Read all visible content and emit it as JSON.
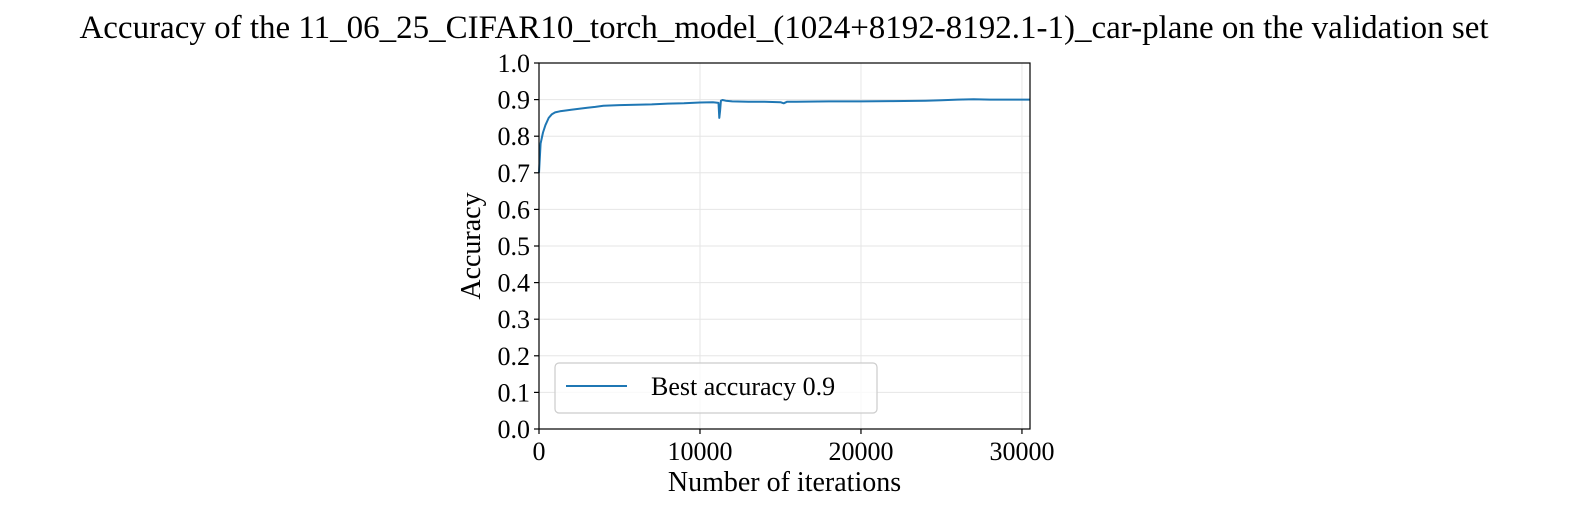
{
  "chart_data": {
    "type": "line",
    "title": "Accuracy of the 11_06_25_CIFAR10_torch_model_(1024+8192-8192.1-1)_car-plane on the validation set",
    "xlabel": "Number of iterations",
    "ylabel": "Accuracy",
    "xlim": [
      0,
      30500
    ],
    "ylim": [
      0.0,
      1.0
    ],
    "grid": true,
    "xticks": [
      0,
      10000,
      20000,
      30000
    ],
    "xtick_labels": [
      "0",
      "10000",
      "20000",
      "30000"
    ],
    "yticks": [
      0.0,
      0.1,
      0.2,
      0.3,
      0.4,
      0.5,
      0.6,
      0.7,
      0.8,
      0.9,
      1.0
    ],
    "ytick_labels": [
      "0.0",
      "0.1",
      "0.2",
      "0.3",
      "0.4",
      "0.5",
      "0.6",
      "0.7",
      "0.8",
      "0.9",
      "1.0"
    ],
    "legend_position": "lower-left",
    "series": [
      {
        "name": "Best accuracy 0.9",
        "color": "#1f77b4",
        "x": [
          0,
          100,
          250,
          400,
          600,
          800,
          1000,
          1300,
          1600,
          2000,
          2500,
          3000,
          3500,
          4000,
          5000,
          6000,
          7000,
          8000,
          9000,
          10000,
          10800,
          11150,
          11200,
          11250,
          11300,
          11400,
          11600,
          12000,
          13000,
          14000,
          15000,
          15200,
          15400,
          16000,
          18000,
          20000,
          22000,
          24000,
          25000,
          26000,
          27000,
          28000,
          29000,
          30000,
          30500
        ],
        "values": [
          0.7,
          0.78,
          0.81,
          0.83,
          0.85,
          0.86,
          0.865,
          0.868,
          0.87,
          0.872,
          0.875,
          0.878,
          0.88,
          0.883,
          0.885,
          0.886,
          0.887,
          0.889,
          0.89,
          0.892,
          0.893,
          0.891,
          0.85,
          0.87,
          0.897,
          0.899,
          0.897,
          0.895,
          0.894,
          0.894,
          0.893,
          0.89,
          0.894,
          0.894,
          0.895,
          0.895,
          0.896,
          0.897,
          0.898,
          0.9,
          0.901,
          0.9,
          0.9,
          0.9,
          0.9
        ]
      }
    ]
  }
}
